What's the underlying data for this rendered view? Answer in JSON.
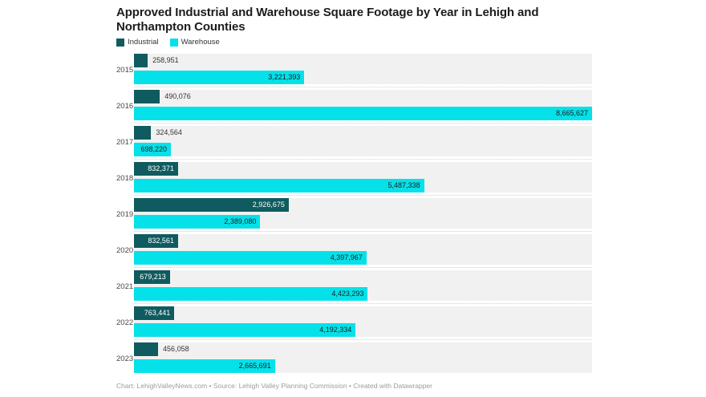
{
  "header": {
    "title_line1": "Approved Industrial and Warehouse Square Footage by Year in Lehigh and",
    "title_line2": "Northampton Counties"
  },
  "legend": {
    "items": [
      {
        "label": "Industrial",
        "color": "#0f5b5f"
      },
      {
        "label": "Warehouse",
        "color": "#05e1e9"
      }
    ]
  },
  "chart_data": {
    "type": "bar",
    "orientation": "horizontal",
    "title": "Approved Industrial and Warehouse Square Footage by Year in Lehigh and Northampton Counties",
    "categories": [
      "2015",
      "2016",
      "2017",
      "2018",
      "2019",
      "2020",
      "2021",
      "2022",
      "2023"
    ],
    "series": [
      {
        "name": "Industrial",
        "color": "#0f5b5f",
        "values": [
          258951,
          490076,
          324564,
          832371,
          2926675,
          832561,
          679213,
          763441,
          456058
        ],
        "labels": [
          "258,951",
          "490,076",
          "324,564",
          "832,371",
          "2,926,675",
          "832,561",
          "679,213",
          "763,441",
          "456,058"
        ],
        "label_inside": [
          false,
          false,
          false,
          true,
          true,
          true,
          true,
          true,
          false
        ]
      },
      {
        "name": "Warehouse",
        "color": "#05e1e9",
        "values": [
          3221393,
          8665627,
          698220,
          5487338,
          2389080,
          4397967,
          4423293,
          4192334,
          2665691
        ],
        "labels": [
          "3,221,393",
          "8,665,627",
          "698,220",
          "5,487,338",
          "2,389,080",
          "4,397,967",
          "4,423,293",
          "4,192,334",
          "2,665,691"
        ],
        "label_inside": [
          true,
          true,
          true,
          true,
          true,
          true,
          true,
          true,
          true
        ]
      }
    ],
    "xmax": 8665627,
    "xlabel": "",
    "ylabel": "",
    "grid": false,
    "legend_position": "top-left",
    "row_background": "#f1f1f1",
    "label_color_inside_industrial": "#ffffff",
    "label_color_inside_warehouse": "#1d1d1d",
    "label_color_outside": "#333333"
  },
  "footer": {
    "text": "Chart: LehighValleyNews.com • Source: Lehigh Valley Planning Commission • Created with Datawrapper"
  }
}
